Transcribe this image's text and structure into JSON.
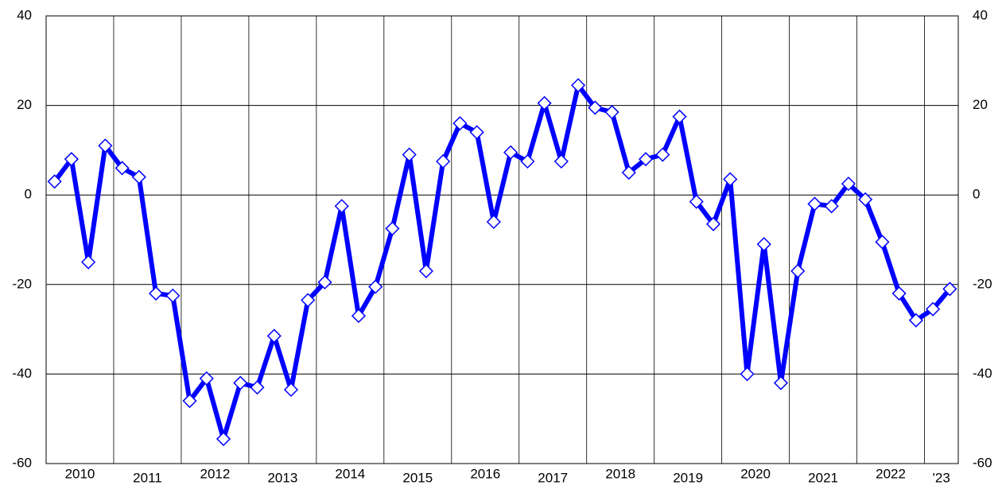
{
  "chart_data": {
    "type": "line",
    "x_labels": [
      "2010",
      "2011",
      "2012",
      "2013",
      "2014",
      "2015",
      "2016",
      "2017",
      "2018",
      "2019",
      "2020",
      "2021",
      "2022",
      "'23"
    ],
    "series": [
      {
        "color": "#0000ff",
        "values": [
          3,
          8,
          -15,
          11,
          6,
          4,
          -22,
          -22.5,
          -46,
          -41,
          -54.5,
          -42,
          -43,
          -31.5,
          -43.5,
          -23.5,
          -19.5,
          -2.5,
          -27,
          -20.5,
          -7.5,
          9,
          -17,
          7.5,
          16,
          14,
          -6,
          9.5,
          7.5,
          20.5,
          7.5,
          24.5,
          19.5,
          18.5,
          5,
          8,
          9,
          17.5,
          -1.5,
          -6.5,
          3.5,
          -40,
          -11,
          -42,
          -17,
          -2,
          -2.5,
          2.5,
          -1,
          -10.5,
          -22,
          -28,
          -25.5,
          -21
        ]
      }
    ],
    "ylim": [
      -60,
      40
    ],
    "yticks": [
      -60,
      -40,
      -20,
      0,
      20,
      40
    ],
    "y2lim": [
      -60,
      40
    ],
    "y2ticks": [
      -60,
      -40,
      -20,
      0,
      20,
      40
    ],
    "grid": true
  }
}
